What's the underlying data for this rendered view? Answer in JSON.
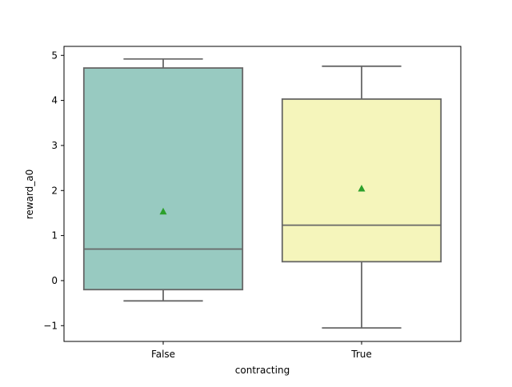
{
  "chart_data": {
    "type": "box",
    "title": "",
    "xlabel": "contracting",
    "ylabel": "reward_a0",
    "ylim": [
      -1.35,
      5.2
    ],
    "yticks": [
      -1,
      0,
      1,
      2,
      3,
      4,
      5
    ],
    "ytick_labels": [
      "−1",
      "0",
      "1",
      "2",
      "3",
      "4",
      "5"
    ],
    "grid": false,
    "legend": "none",
    "categories": [
      "False",
      "True"
    ],
    "boxes": [
      {
        "category": "False",
        "whisker_low": -0.45,
        "q1": -0.2,
        "median": 0.7,
        "q3": 4.72,
        "whisker_high": 4.92,
        "mean": 1.53,
        "color": "#98cac1"
      },
      {
        "category": "True",
        "whisker_low": -1.05,
        "q1": 0.42,
        "median": 1.23,
        "q3": 4.03,
        "whisker_high": 4.76,
        "mean": 2.04,
        "color": "#f5f5bb"
      }
    ],
    "colors": {
      "box_edge": "#676767",
      "mean_marker": "#2ca02c",
      "axes": "#000000"
    }
  }
}
